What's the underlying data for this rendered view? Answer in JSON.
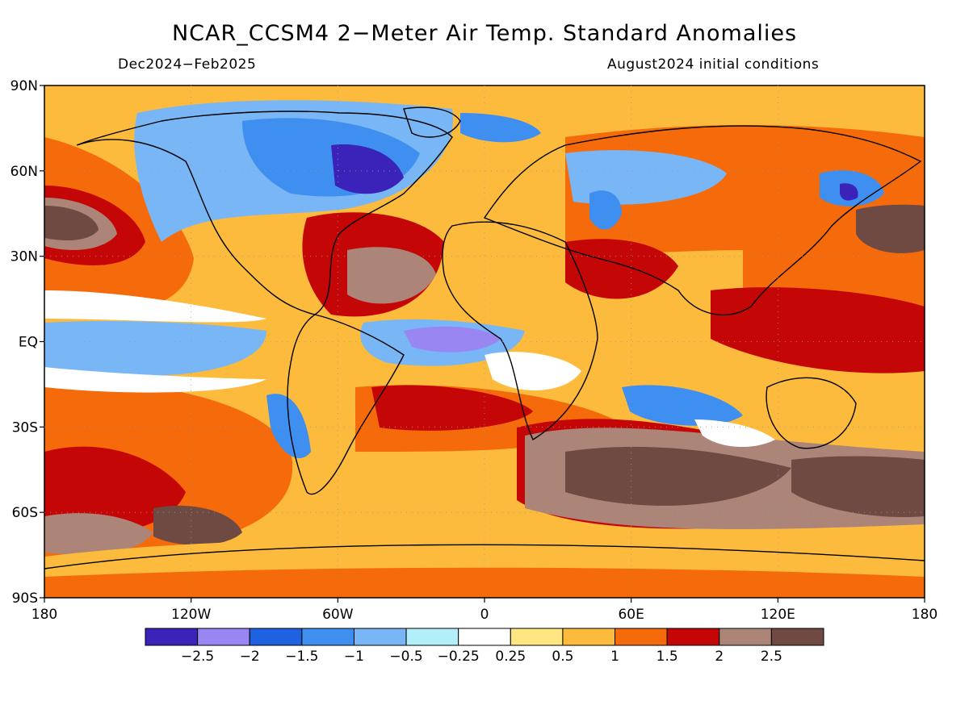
{
  "header": {
    "title": "NCAR_CCSM4 2−Meter Air Temp. Standard Anomalies",
    "period": "Dec2024−Feb2025",
    "initial_conditions": "August2024 initial conditions"
  },
  "axes": {
    "lat_ticks": [
      {
        "value": 90,
        "label": "90N"
      },
      {
        "value": 60,
        "label": "60N"
      },
      {
        "value": 30,
        "label": "30N"
      },
      {
        "value": 0,
        "label": "EQ"
      },
      {
        "value": -30,
        "label": "30S"
      },
      {
        "value": -60,
        "label": "60S"
      },
      {
        "value": -90,
        "label": "90S"
      }
    ],
    "lon_ticks": [
      {
        "value": -180,
        "label": "180"
      },
      {
        "value": -120,
        "label": "120W"
      },
      {
        "value": -60,
        "label": "60W"
      },
      {
        "value": 0,
        "label": "0"
      },
      {
        "value": 60,
        "label": "60E"
      },
      {
        "value": 120,
        "label": "120E"
      },
      {
        "value": 180,
        "label": "180"
      }
    ]
  },
  "colorbar": {
    "colors": [
      "#3b22b8",
      "#9a86f2",
      "#1f62e0",
      "#3f8ff0",
      "#79b6f5",
      "#b3effa",
      "#ffffff",
      "#ffe682",
      "#fcbb3c",
      "#f56a0a",
      "#c40606",
      "#ad8478",
      "#6e4a42"
    ],
    "labels": [
      "−2.5",
      "−2",
      "−1.5",
      "−1",
      "−0.5",
      "−0.25",
      "0.25",
      "0.5",
      "1",
      "1.5",
      "2",
      "2.5"
    ]
  }
}
